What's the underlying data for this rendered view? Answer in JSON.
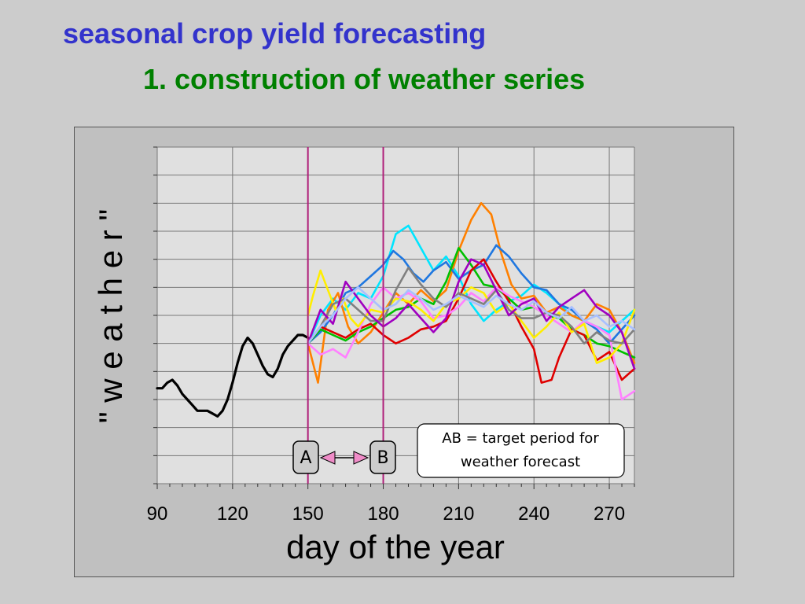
{
  "slide": {
    "title": "seasonal crop yield forecasting",
    "subtitle": "1. construction of weather series"
  },
  "colors": {
    "title": "#3333cc",
    "subtitle": "#008000",
    "marker_lines": "#b0207a",
    "arrow_fill": "#f08cc8",
    "observed": "#000000"
  },
  "chart_data": {
    "type": "line",
    "title": "",
    "xlabel": "day of the year",
    "ylabel": "\" w e a t h e r \"",
    "xlim": [
      90,
      280
    ],
    "ylim": [
      0,
      12
    ],
    "xticks": [
      90,
      120,
      150,
      180,
      210,
      240,
      270
    ],
    "grid": true,
    "legend": "none",
    "vertical_markers": [
      {
        "label": "A",
        "x": 150
      },
      {
        "label": "B",
        "x": 180
      }
    ],
    "annotation": {
      "line1": "AB = target period for",
      "line2": "weather forecast"
    },
    "observed": {
      "color": "#000000",
      "x": [
        90,
        92,
        94,
        96,
        98,
        100,
        102,
        104,
        106,
        108,
        110,
        112,
        114,
        116,
        118,
        120,
        122,
        124,
        126,
        128,
        130,
        132,
        134,
        136,
        138,
        140,
        142,
        144,
        146,
        148,
        150
      ],
      "y": [
        3.4,
        3.4,
        3.6,
        3.7,
        3.5,
        3.2,
        3.0,
        2.8,
        2.6,
        2.6,
        2.6,
        2.5,
        2.4,
        2.6,
        3.0,
        3.6,
        4.3,
        4.9,
        5.2,
        5.0,
        4.6,
        4.2,
        3.9,
        3.8,
        4.1,
        4.6,
        4.9,
        5.1,
        5.3,
        5.3,
        5.2
      ]
    },
    "series": [
      {
        "color": "#00e5ff",
        "x": [
          150,
          155,
          160,
          165,
          170,
          175,
          180,
          185,
          190,
          195,
          200,
          205,
          210,
          215,
          220,
          225,
          230,
          235,
          240,
          245,
          250,
          255,
          260,
          265,
          270,
          275,
          280
        ],
        "y": [
          5.0,
          6.0,
          6.6,
          6.2,
          6.8,
          6.6,
          7.4,
          8.9,
          9.2,
          8.4,
          7.6,
          8.1,
          7.4,
          6.4,
          5.8,
          6.2,
          6.5,
          6.7,
          7.1,
          6.8,
          6.4,
          6.0,
          5.8,
          5.6,
          5.4,
          5.8,
          6.2
        ]
      },
      {
        "color": "#ff8000",
        "x": [
          150,
          154,
          158,
          162,
          166,
          170,
          175,
          180,
          185,
          190,
          195,
          200,
          205,
          210,
          215,
          219,
          223,
          227,
          231,
          235,
          240,
          245,
          250,
          255,
          260,
          265,
          270,
          275,
          280
        ],
        "y": [
          5.0,
          3.6,
          6.2,
          6.8,
          5.6,
          5.0,
          5.4,
          6.1,
          6.8,
          6.4,
          6.9,
          6.5,
          6.9,
          8.3,
          9.4,
          10.0,
          9.6,
          8.2,
          7.1,
          6.6,
          6.7,
          6.1,
          6.3,
          6.0,
          5.8,
          6.4,
          6.2,
          5.4,
          4.3
        ]
      },
      {
        "color": "#1f77e0",
        "x": [
          150,
          155,
          160,
          165,
          170,
          175,
          180,
          184,
          188,
          192,
          196,
          200,
          205,
          210,
          215,
          220,
          225,
          230,
          235,
          240,
          245,
          250,
          255,
          260,
          265,
          270,
          275,
          280
        ],
        "y": [
          5.0,
          5.4,
          6.0,
          6.8,
          7.0,
          7.4,
          7.8,
          8.3,
          8.0,
          7.5,
          7.2,
          7.6,
          7.9,
          7.3,
          7.6,
          7.8,
          8.5,
          8.1,
          7.5,
          7.0,
          6.9,
          6.4,
          6.2,
          5.8,
          5.5,
          5.0,
          5.5,
          6.0
        ]
      },
      {
        "color": "#00c000",
        "x": [
          150,
          155,
          160,
          165,
          170,
          175,
          180,
          185,
          190,
          195,
          200,
          205,
          210,
          215,
          220,
          225,
          230,
          235,
          240,
          245,
          250,
          255,
          260,
          265,
          270,
          275,
          280
        ],
        "y": [
          5.0,
          5.5,
          5.3,
          5.1,
          5.4,
          5.6,
          5.9,
          6.2,
          6.3,
          6.6,
          6.4,
          7.2,
          8.4,
          7.8,
          7.1,
          7.0,
          6.6,
          6.2,
          6.3,
          6.0,
          5.9,
          5.5,
          5.3,
          5.0,
          4.9,
          4.7,
          4.5
        ]
      },
      {
        "color": "#e00000",
        "x": [
          150,
          155,
          160,
          165,
          170,
          175,
          180,
          185,
          190,
          195,
          200,
          205,
          210,
          215,
          220,
          225,
          230,
          235,
          240,
          243,
          247,
          250,
          255,
          260,
          265,
          270,
          275,
          280
        ],
        "y": [
          5.0,
          5.6,
          5.4,
          5.2,
          5.5,
          5.7,
          5.3,
          5.0,
          5.2,
          5.5,
          5.6,
          5.8,
          6.6,
          7.6,
          8.0,
          7.2,
          6.5,
          5.6,
          4.8,
          3.6,
          3.7,
          4.5,
          5.5,
          5.3,
          4.4,
          4.7,
          3.7,
          4.1
        ]
      },
      {
        "color": "#ff80ff",
        "x": [
          150,
          155,
          160,
          165,
          170,
          175,
          180,
          185,
          190,
          195,
          200,
          205,
          210,
          215,
          220,
          225,
          230,
          235,
          240,
          245,
          250,
          255,
          260,
          265,
          270,
          275,
          280
        ],
        "y": [
          5.0,
          4.6,
          4.8,
          4.5,
          5.4,
          6.4,
          7.0,
          6.6,
          6.8,
          6.5,
          5.9,
          6.0,
          6.3,
          6.8,
          6.5,
          7.0,
          6.7,
          6.5,
          6.3,
          6.0,
          5.7,
          5.4,
          5.8,
          5.6,
          5.3,
          3.0,
          3.3
        ]
      },
      {
        "color": "#ffee00",
        "x": [
          150,
          152,
          155,
          158,
          161,
          164,
          167,
          170,
          175,
          180,
          185,
          190,
          195,
          200,
          205,
          210,
          215,
          220,
          225,
          230,
          235,
          240,
          245,
          250,
          255,
          260,
          265,
          270,
          275,
          280
        ],
        "y": [
          6.0,
          6.7,
          7.6,
          6.9,
          6.2,
          6.6,
          5.9,
          5.6,
          6.2,
          6.1,
          6.6,
          6.5,
          6.2,
          5.8,
          6.4,
          6.6,
          7.0,
          6.8,
          6.1,
          6.4,
          5.8,
          5.2,
          5.6,
          6.1,
          5.4,
          5.7,
          4.3,
          4.5,
          5.0,
          6.2
        ]
      },
      {
        "color": "#808080",
        "x": [
          150,
          155,
          160,
          165,
          170,
          175,
          180,
          185,
          190,
          195,
          200,
          205,
          210,
          215,
          220,
          225,
          230,
          235,
          240,
          245,
          250,
          255,
          260,
          265,
          270,
          275,
          280
        ],
        "y": [
          5.0,
          5.6,
          6.4,
          6.6,
          6.2,
          5.8,
          5.8,
          6.9,
          7.7,
          7.1,
          6.6,
          6.3,
          6.8,
          6.6,
          6.4,
          6.9,
          6.2,
          5.9,
          5.9,
          6.1,
          6.0,
          5.6,
          5.0,
          5.4,
          5.1,
          5.0,
          5.5
        ]
      },
      {
        "color": "#a000c0",
        "x": [
          150,
          155,
          160,
          165,
          170,
          175,
          180,
          185,
          190,
          195,
          200,
          205,
          210,
          215,
          220,
          225,
          230,
          235,
          240,
          245,
          250,
          255,
          260,
          265,
          270,
          275,
          280
        ],
        "y": [
          5.0,
          6.2,
          5.7,
          7.2,
          6.6,
          6.0,
          5.6,
          5.9,
          6.4,
          5.9,
          5.4,
          5.9,
          7.2,
          8.0,
          7.8,
          6.9,
          6.0,
          6.4,
          6.6,
          5.8,
          6.3,
          6.6,
          6.9,
          6.3,
          6.0,
          5.4,
          4.1
        ]
      },
      {
        "color": "#a8c0ff",
        "x": [
          150,
          155,
          160,
          165,
          170,
          175,
          180,
          185,
          190,
          195,
          200,
          205,
          210,
          215,
          220,
          225,
          230,
          235,
          240,
          245,
          250,
          255,
          260,
          265,
          270,
          275,
          280
        ],
        "y": [
          5.0,
          5.6,
          6.0,
          6.6,
          7.0,
          6.6,
          6.2,
          6.4,
          6.9,
          6.6,
          6.2,
          6.4,
          6.7,
          6.5,
          6.3,
          6.7,
          6.4,
          6.2,
          6.5,
          6.1,
          5.9,
          6.3,
          5.8,
          6.0,
          5.6,
          5.8,
          5.5
        ]
      }
    ]
  }
}
